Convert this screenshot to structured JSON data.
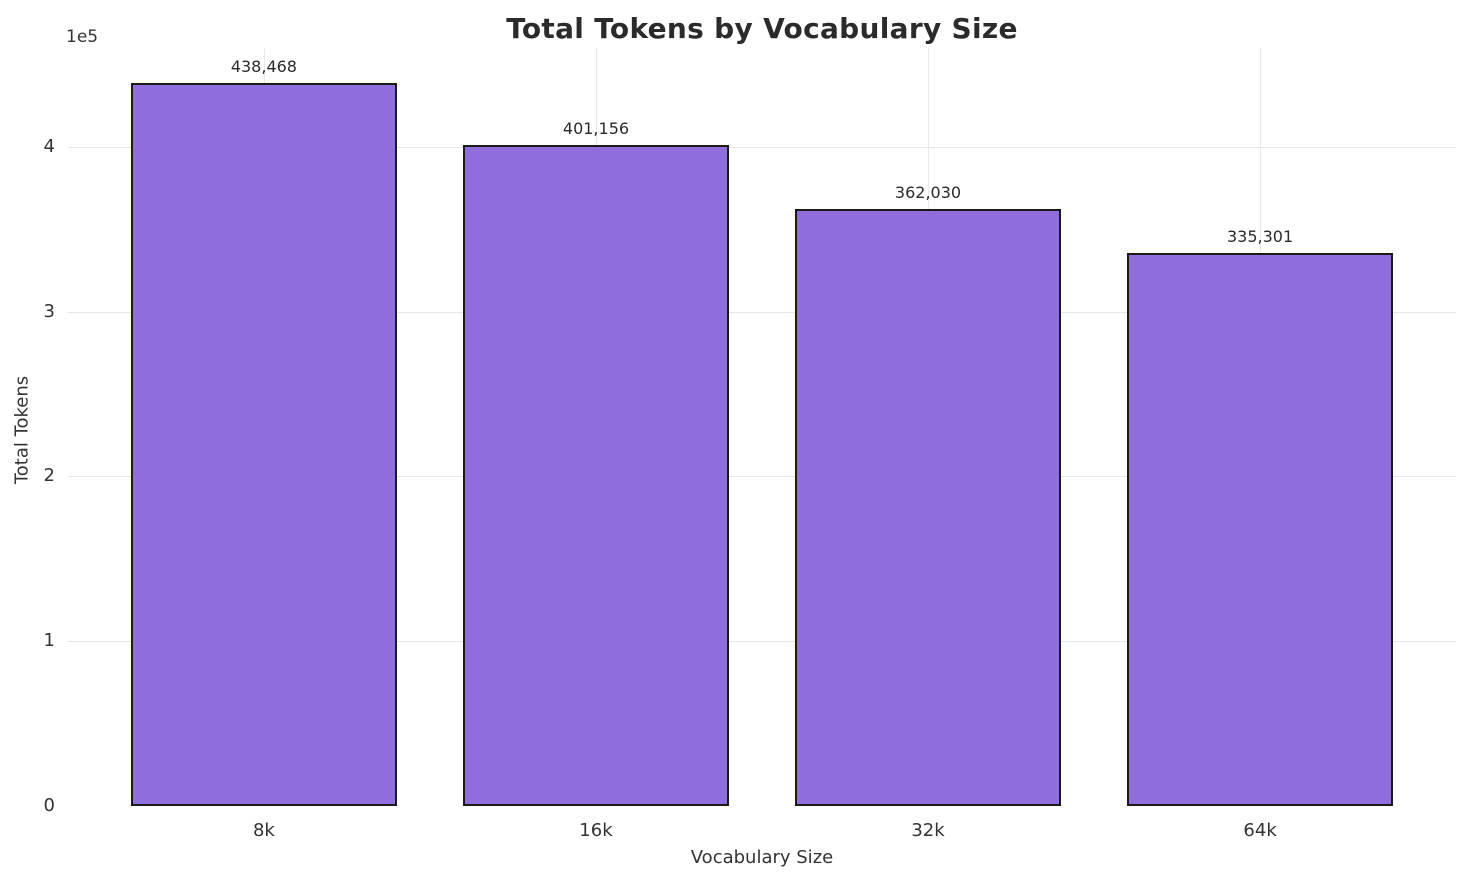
{
  "chart_data": {
    "type": "bar",
    "title": "Total Tokens by Vocabulary Size",
    "xlabel": "Vocabulary Size",
    "ylabel": "Total Tokens",
    "y_offset_label": "1e5",
    "categories": [
      "8k",
      "16k",
      "32k",
      "64k"
    ],
    "values": [
      438468,
      401156,
      362030,
      335301
    ],
    "value_labels": [
      "438,468",
      "401,156",
      "362,030",
      "335,301"
    ],
    "ylim": [
      0,
      460000
    ],
    "xlim": [
      -0.59,
      3.59
    ],
    "bar_rel_width": 0.8,
    "yticks": [
      0,
      100000,
      200000,
      300000,
      400000
    ],
    "ytick_labels": [
      "0",
      "1",
      "2",
      "3",
      "4"
    ],
    "grid": true,
    "legend": "none",
    "bar_color": "#8f6edc",
    "bar_edge_color": "#1a1a1a",
    "grid_color": "#e7e7e7",
    "background_color": "#ffffff"
  }
}
